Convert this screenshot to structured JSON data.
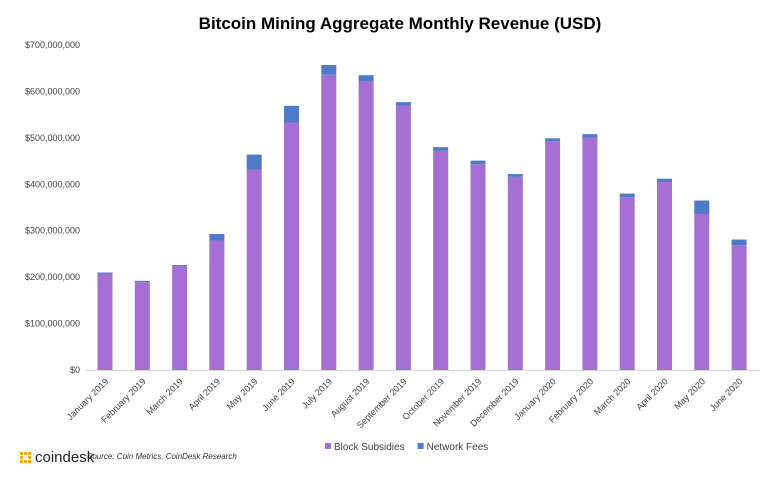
{
  "chart_data": {
    "type": "bar",
    "stacked": true,
    "title": "Bitcoin Mining Aggregate Monthly Revenue (USD)",
    "xlabel": "",
    "ylabel": "",
    "ylim": [
      0,
      700000000
    ],
    "yticks": [
      0,
      100000000,
      200000000,
      300000000,
      400000000,
      500000000,
      600000000,
      700000000
    ],
    "ytick_labels": [
      "$0",
      "$100,000,000",
      "$200,000,000",
      "$300,000,000",
      "$400,000,000",
      "$500,000,000",
      "$600,000,000",
      "$700,000,000"
    ],
    "grid": false,
    "legend_position": "bottom",
    "categories": [
      "January 2019",
      "February 2019",
      "March 2019",
      "April 2019",
      "May 2019",
      "June 2019",
      "July 2019",
      "August 2019",
      "September 2019",
      "October 2019",
      "November 2019",
      "December 2019",
      "January 2020",
      "February 2020",
      "March 2020",
      "April 2020",
      "May 2020",
      "June 2020"
    ],
    "series": [
      {
        "name": "Block Subsidies",
        "color": "#a66fd4",
        "values": [
          207000000,
          189000000,
          223000000,
          279000000,
          431000000,
          533000000,
          636000000,
          621000000,
          569000000,
          472000000,
          443000000,
          416000000,
          493000000,
          500000000,
          372000000,
          405000000,
          336000000,
          269000000
        ]
      },
      {
        "name": "Network Fees",
        "color": "#4f7ac7",
        "values": [
          3000000,
          3000000,
          3000000,
          14000000,
          33000000,
          36000000,
          21000000,
          14000000,
          8000000,
          8000000,
          8000000,
          6000000,
          6000000,
          8000000,
          8000000,
          7000000,
          29000000,
          12000000
        ]
      }
    ]
  },
  "footer": {
    "logo_text": "coindesk",
    "source": "Source: Coin Metrics, CoinDesk Research",
    "logo_color": "#f5a623"
  }
}
